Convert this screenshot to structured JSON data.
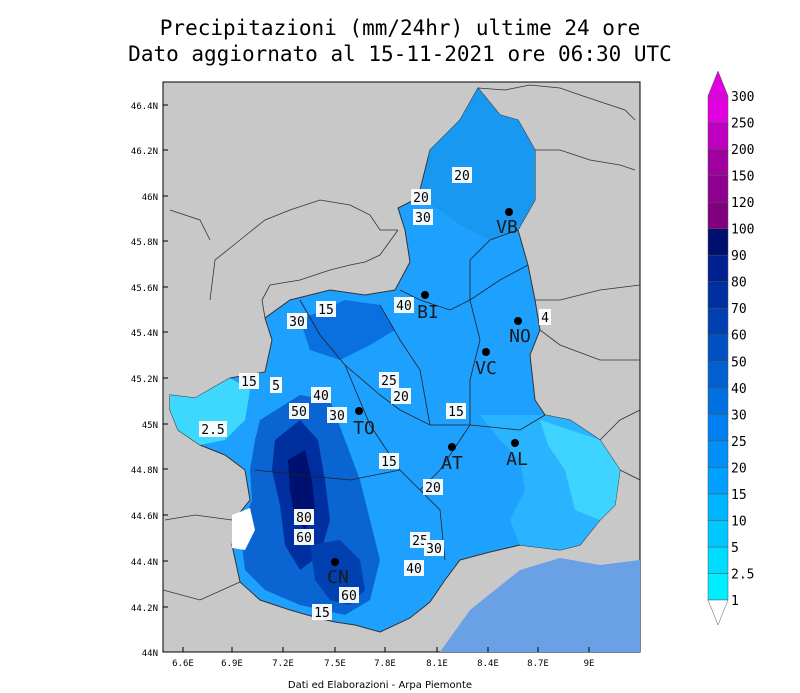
{
  "title_line1": "Precipitazioni (mm/24hr) ultime 24 ore",
  "title_line2": "Dato aggiornato al 15-11-2021 ore 06:30 UTC",
  "credit": "Dati ed Elaborazioni - Arpa Piemonte",
  "lat_labels": [
    "46.4N",
    "46.2N",
    "46N",
    "45.8N",
    "45.6N",
    "45.4N",
    "45.2N",
    "45N",
    "44.8N",
    "44.6N",
    "44.4N",
    "44.2N",
    "44N"
  ],
  "lon_labels": [
    "6.6E",
    "6.9E",
    "7.2E",
    "7.5E",
    "7.8E",
    "8.1E",
    "8.4E",
    "8.7E",
    "9E"
  ],
  "legend": {
    "levels": [
      "1",
      "2.5",
      "5",
      "10",
      "15",
      "20",
      "25",
      "30",
      "40",
      "50",
      "60",
      "70",
      "80",
      "90",
      "100",
      "120",
      "150",
      "200",
      "250",
      "300"
    ],
    "colors": [
      "#00ffff",
      "#00eeff",
      "#00dcff",
      "#00c8ff",
      "#00b4ff",
      "#00a0ff",
      "#0090f8",
      "#0080f0",
      "#0070e0",
      "#0060d0",
      "#0050c0",
      "#0040b0",
      "#0030a0",
      "#002090",
      "#001070",
      "#800080",
      "#900090",
      "#a000a0",
      "#c000c0",
      "#e000e0"
    ]
  },
  "cities": [
    {
      "code": "VB"
    },
    {
      "code": "BI"
    },
    {
      "code": "NO"
    },
    {
      "code": "VC"
    },
    {
      "code": "TO"
    },
    {
      "code": "AT"
    },
    {
      "code": "AL"
    },
    {
      "code": "CN"
    }
  ],
  "contour_labels": [
    "20",
    "30",
    "15",
    "40",
    "30",
    "15",
    "5",
    "40",
    "50",
    "30",
    "25",
    "20",
    "2.5",
    "15",
    "15",
    "20",
    "80",
    "60",
    "25",
    "30",
    "40",
    "60",
    "15",
    "4",
    "20"
  ]
}
